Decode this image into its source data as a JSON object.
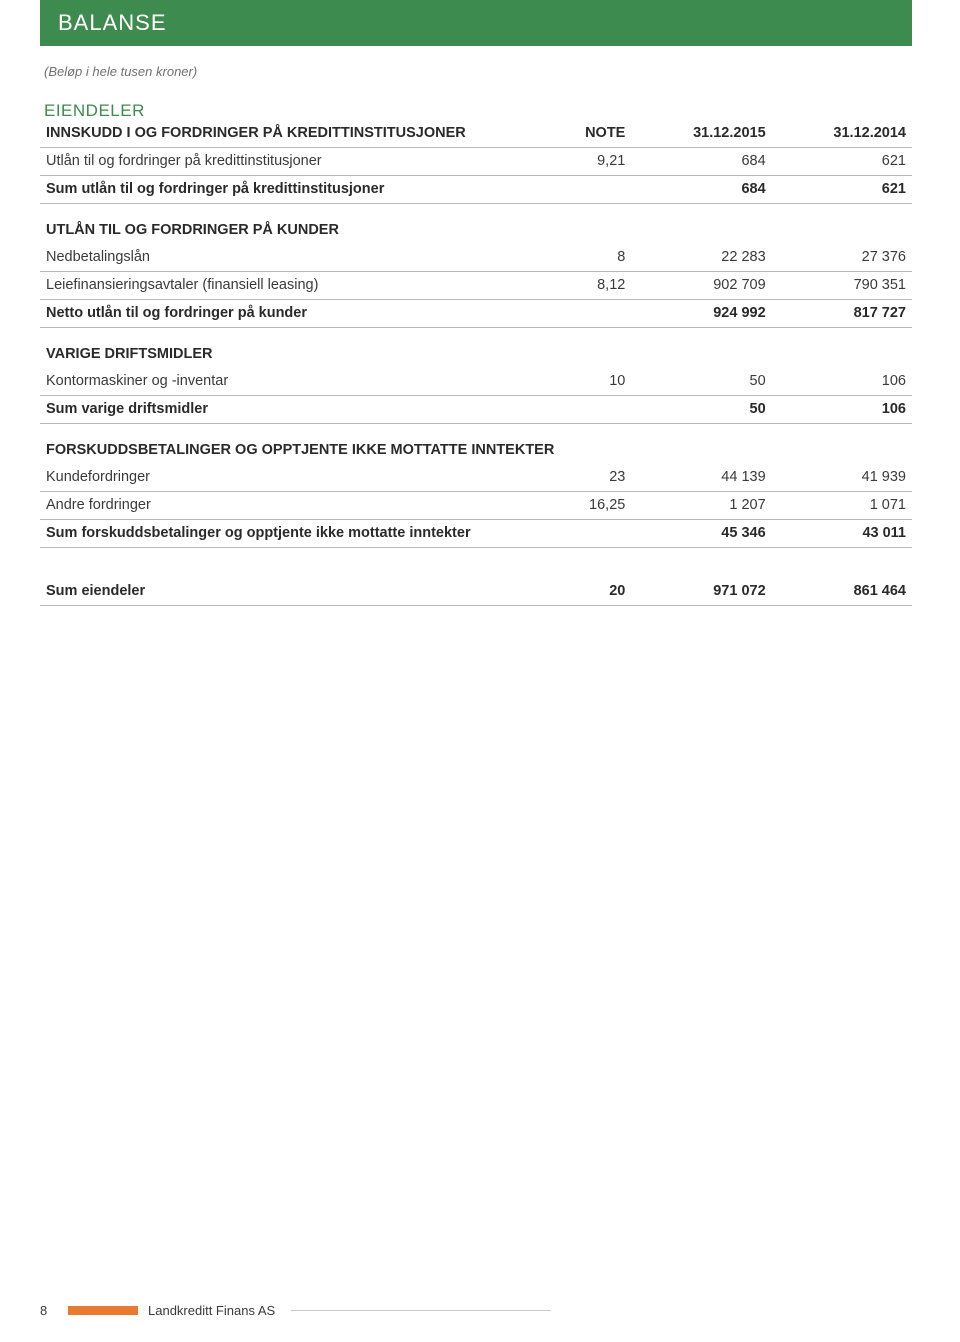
{
  "banner": {
    "title": "BALANSE"
  },
  "subtitle": "(Beløp i hele tusen kroner)",
  "assets_title": "EIENDELER",
  "columns": {
    "note": "NOTE",
    "col1": "31.12.2015",
    "col2": "31.12.2014"
  },
  "sections": {
    "s1": {
      "heading": "INNSKUDD I OG FORDRINGER PÅ KREDITTINSTITUSJONER",
      "rows": [
        {
          "label": "Utlån til og fordringer på kredittinstitusjoner",
          "note": "9,21",
          "v1": "684",
          "v2": "621"
        },
        {
          "label": "Sum utlån til og fordringer på kredittinstitusjoner",
          "note": "",
          "v1": "684",
          "v2": "621",
          "bold": true
        }
      ]
    },
    "s2": {
      "heading": "UTLÅN TIL OG FORDRINGER PÅ KUNDER",
      "rows": [
        {
          "label": "Nedbetalingslån",
          "note": "8",
          "v1": "22 283",
          "v2": "27 376"
        },
        {
          "label": "Leiefinansieringsavtaler (finansiell leasing)",
          "note": "8,12",
          "v1": "902 709",
          "v2": "790 351"
        },
        {
          "label": "Netto utlån til og fordringer på kunder",
          "note": "",
          "v1": "924 992",
          "v2": "817 727",
          "bold": true
        }
      ]
    },
    "s3": {
      "heading": "VARIGE DRIFTSMIDLER",
      "rows": [
        {
          "label": "Kontormaskiner og -inventar",
          "note": "10",
          "v1": "50",
          "v2": "106"
        },
        {
          "label": "Sum varige driftsmidler",
          "note": "",
          "v1": "50",
          "v2": "106",
          "bold": true
        }
      ]
    },
    "s4": {
      "heading": "FORSKUDDSBETALINGER OG OPPTJENTE IKKE MOTTATTE INNTEKTER",
      "rows": [
        {
          "label": "Kundefordringer",
          "note": "23",
          "v1": "44 139",
          "v2": "41 939"
        },
        {
          "label": "Andre fordringer",
          "note": "16,25",
          "v1": "1 207",
          "v2": "1 071"
        },
        {
          "label": "Sum forskuddsbetalinger og opptjente ikke mottatte inntekter",
          "note": "",
          "v1": "45 346",
          "v2": "43 011",
          "bold": true
        }
      ]
    },
    "total": {
      "label": "Sum eiendeler",
      "note": "20",
      "v1": "971 072",
      "v2": "861 464"
    }
  },
  "footer": {
    "page": "8",
    "brand": "Landkreditt Finans AS"
  },
  "colors": {
    "banner_bg": "#3d8b4f",
    "banner_text": "#ffffff",
    "accent_orange": "#e77b2f",
    "rule": "#b8b8b8",
    "text": "#3a3a3a"
  }
}
